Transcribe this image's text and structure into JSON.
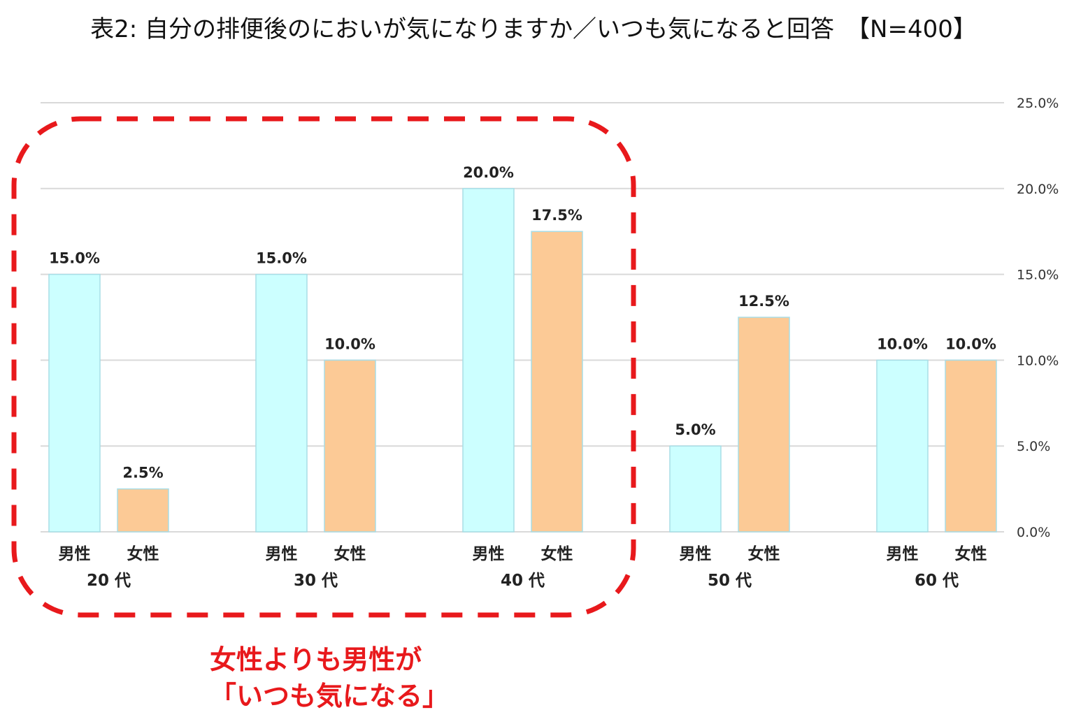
{
  "title": "表2: 自分の排便後のにおいが気になりますか／いつも気になると回答　【N=400】",
  "callout": {
    "line1": "女性よりも男性が",
    "line2": "「いつも気になる」"
  },
  "colors": {
    "male": "#ccffff",
    "female": "#fcca96",
    "bar_stroke": "#a8dde6",
    "grid": "#d9d9d9",
    "highlight": "#e8191c"
  },
  "chart_data": {
    "type": "bar",
    "categories": [
      "20 代",
      "30 代",
      "40 代",
      "50 代",
      "60 代"
    ],
    "sub_labels": [
      "男性",
      "女性"
    ],
    "series": [
      {
        "name": "男性",
        "values": [
          15.0,
          15.0,
          20.0,
          5.0,
          10.0
        ]
      },
      {
        "name": "女性",
        "values": [
          2.5,
          10.0,
          17.5,
          12.5,
          10.0
        ]
      }
    ],
    "ylim": [
      0,
      25
    ],
    "yticks": [
      "0.0%",
      "5.0%",
      "10.0%",
      "15.0%",
      "20.0%",
      "25.0%"
    ],
    "y_axis_side": "right",
    "grid": true,
    "highlight_groups": [
      "20 代",
      "30 代",
      "40 代"
    ]
  }
}
